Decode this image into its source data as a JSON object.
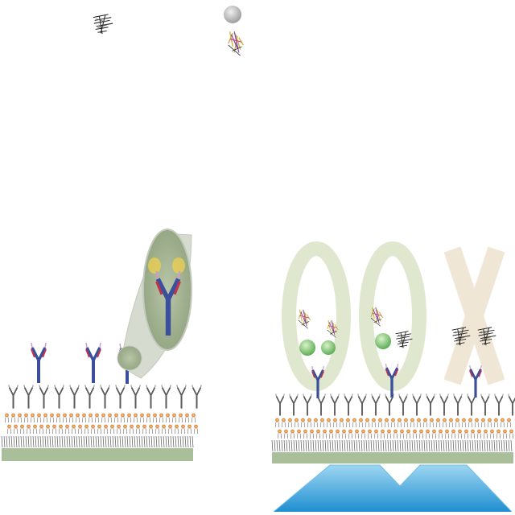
{
  "figure": {
    "title": "",
    "description_hidden": false
  },
  "legend": {
    "analyte_icon": "unlabeled-analyte-icon",
    "labeled_analyte_icon": "bead-labeled-analyte-icon"
  },
  "left_panel": {
    "capture_antibodies": 3,
    "zoom_callout": "antibody-zoom-icon"
  },
  "right_panel": {
    "rings": [
      {
        "symbol": "O",
        "state": "positive"
      },
      {
        "symbol": "O",
        "state": "positive"
      },
      {
        "symbol": "X",
        "state": "negative"
      }
    ],
    "sensor": "prism-icon"
  },
  "colors": {
    "surface": "#a9bf9a",
    "ring": "#dfe8cf",
    "cross": "#efe6d6",
    "bead": "#8fcf8a",
    "bead_gray": "#c8c8c8",
    "prism": "#3aa7e0",
    "antibody_blue": "#3b4f9c",
    "antibody_red": "#c0344b",
    "lipid": "#c7a050"
  }
}
